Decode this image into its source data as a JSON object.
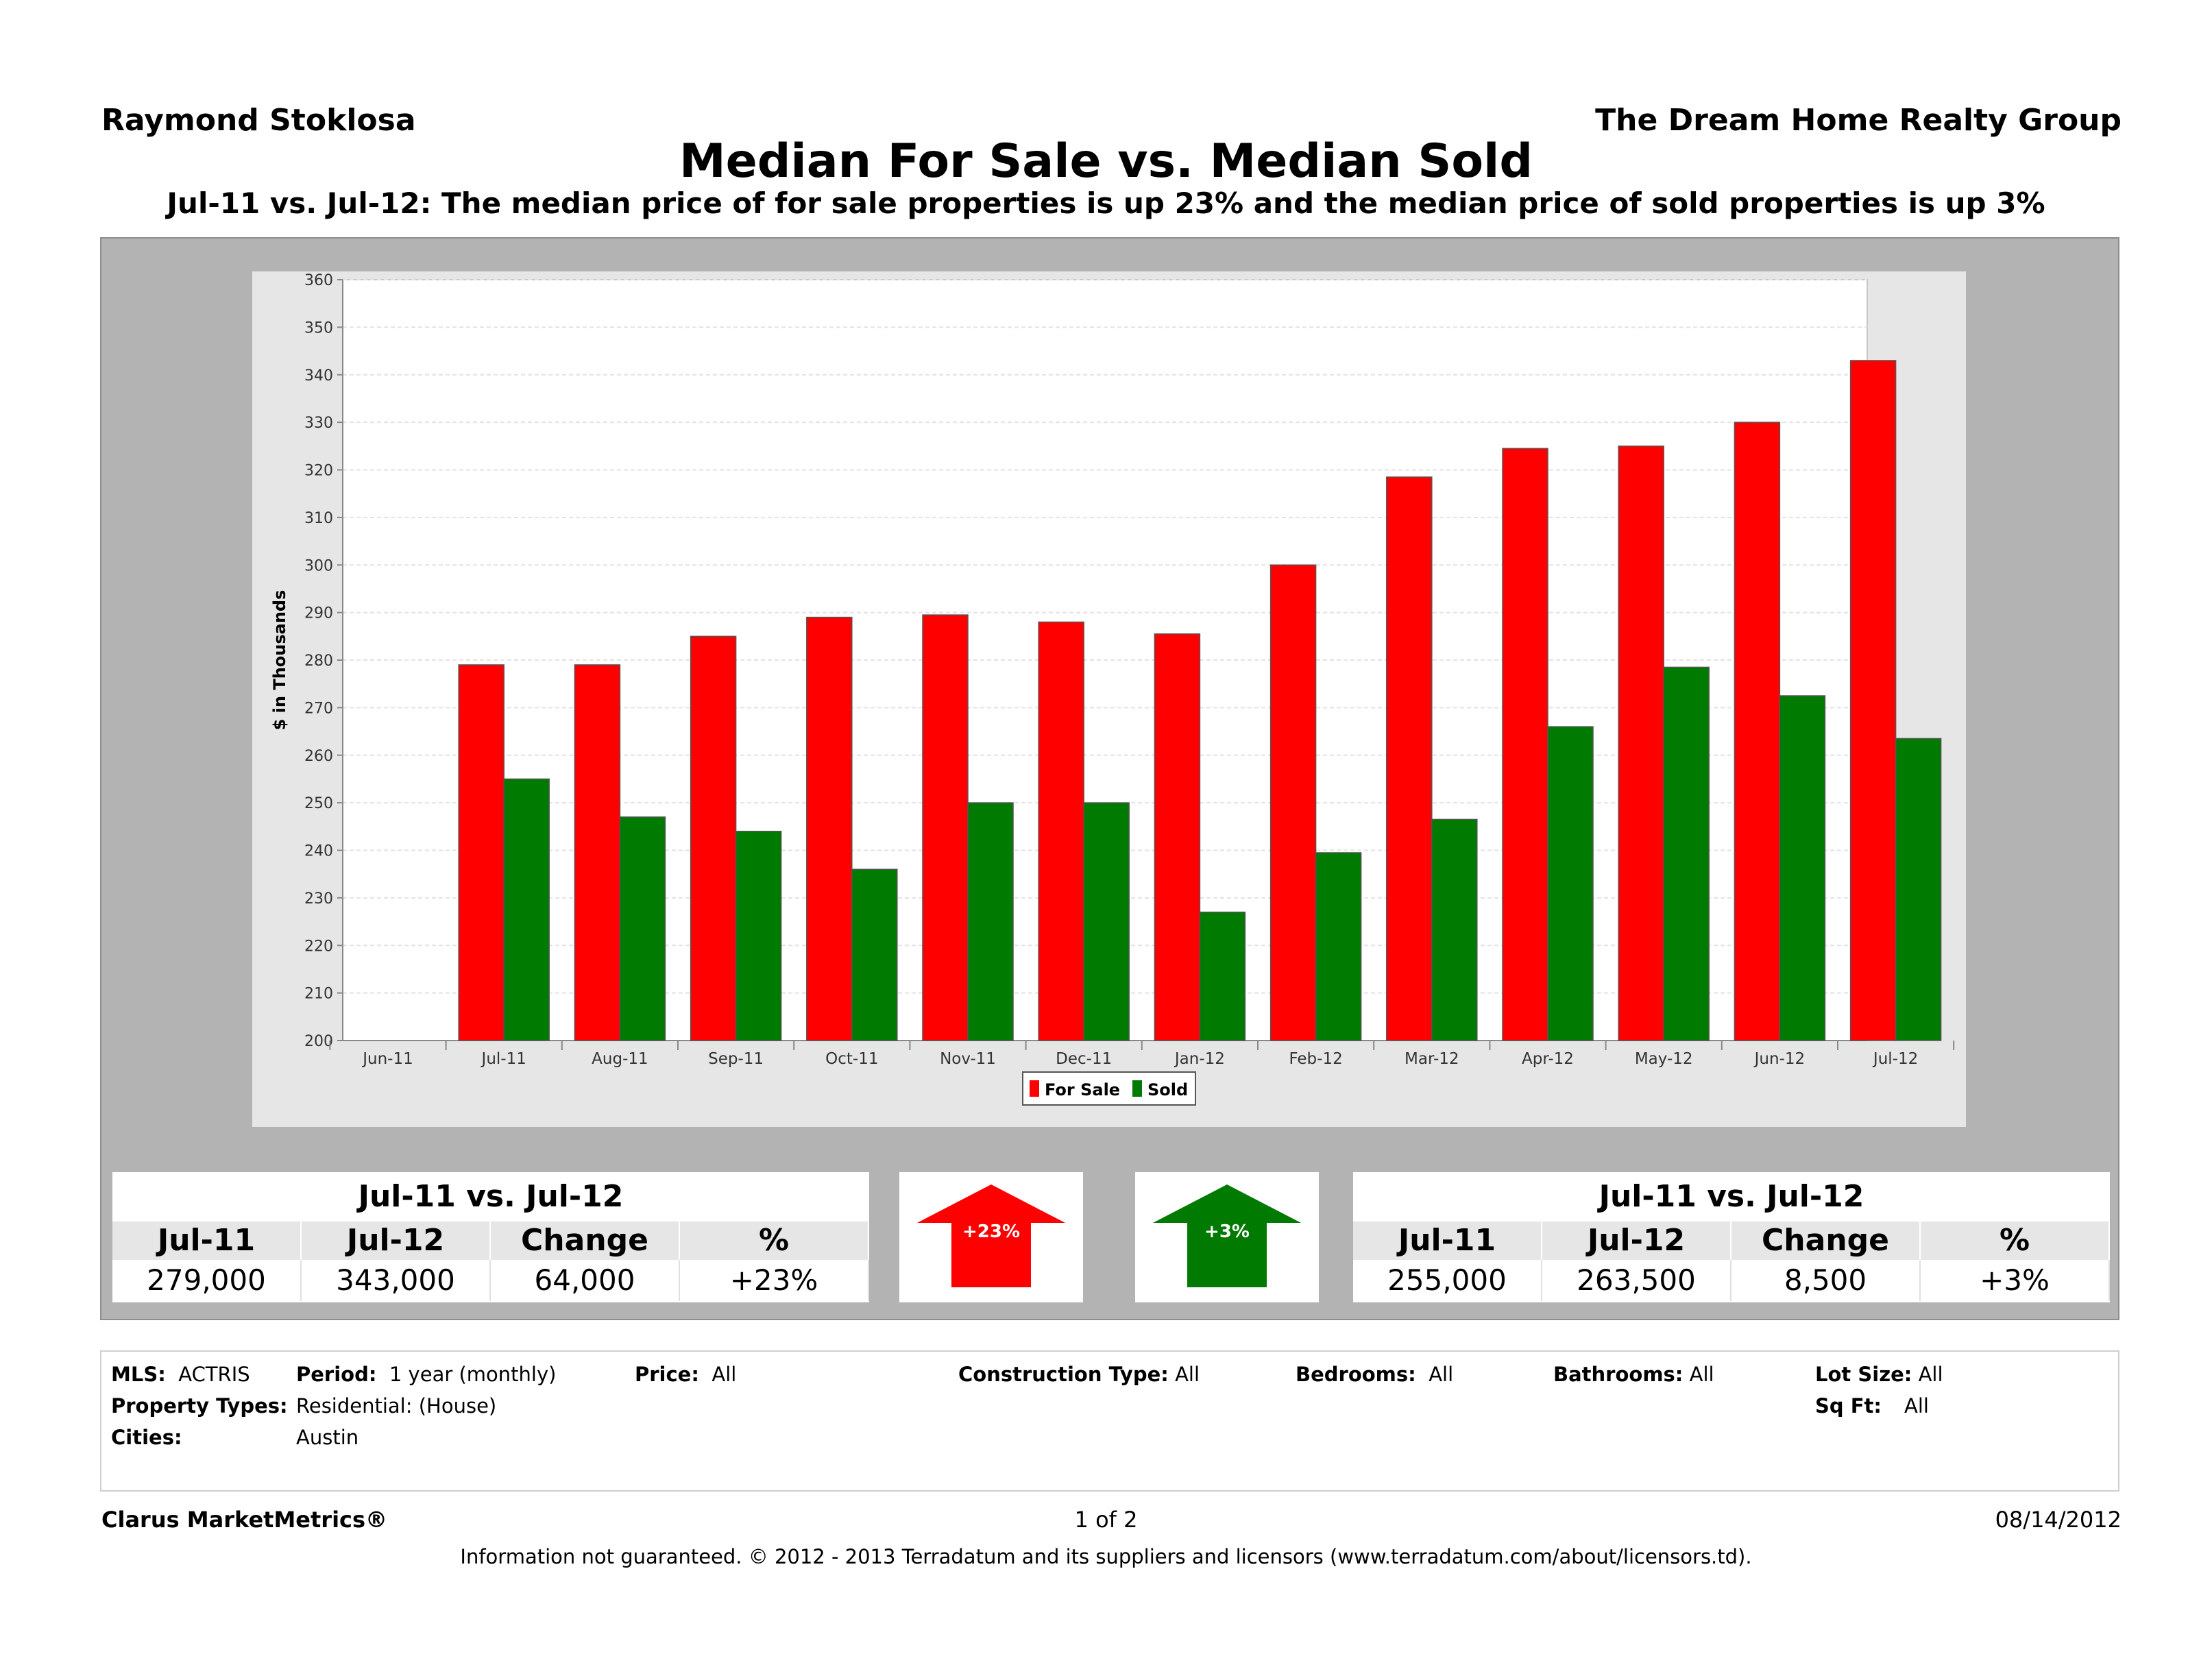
{
  "header": {
    "agent": "Raymond Stoklosa",
    "company": "The Dream Home Realty Group",
    "title": "Median For Sale vs. Median Sold",
    "subtitle": "Jul-11 vs. Jul-12:  The median price of for sale properties is up 23% and the median price of sold properties is up 3%"
  },
  "chart_data": {
    "type": "bar",
    "ylabel": "$ in Thousands",
    "ylim": [
      200,
      360
    ],
    "yticks": [
      "200",
      "210",
      "220",
      "230",
      "240",
      "250",
      "260",
      "270",
      "280",
      "290",
      "300",
      "310",
      "320",
      "330",
      "340",
      "350",
      "360"
    ],
    "categories": [
      "Jun-11",
      "Jul-11",
      "Aug-11",
      "Sep-11",
      "Oct-11",
      "Nov-11",
      "Dec-11",
      "Jan-12",
      "Feb-12",
      "Mar-12",
      "Apr-12",
      "May-12",
      "Jun-12",
      "Jul-12"
    ],
    "series": [
      {
        "name": "For Sale",
        "color": "#ff0000",
        "values": [
          null,
          279,
          279,
          285,
          289,
          289.5,
          288,
          285.5,
          300,
          318.5,
          324.5,
          325,
          330,
          343
        ]
      },
      {
        "name": "Sold",
        "color": "#007a00",
        "values": [
          null,
          255,
          247,
          244,
          236,
          250,
          250,
          227,
          239.5,
          246.5,
          266,
          278.5,
          272.5,
          263.5
        ]
      }
    ],
    "grid": true,
    "legend": "bottom-center"
  },
  "stats": {
    "for_sale": {
      "title": "Jul-11 vs. Jul-12",
      "headers": [
        "Jul-11",
        "Jul-12",
        "Change",
        "%"
      ],
      "values": [
        "279,000",
        "343,000",
        "64,000",
        "+23%"
      ],
      "arrow_label": "+23%",
      "arrow_color": "#ff0000"
    },
    "sold": {
      "title": "Jul-11 vs. Jul-12",
      "headers": [
        "Jul-11",
        "Jul-12",
        "Change",
        "%"
      ],
      "values": [
        "255,000",
        "263,500",
        "8,500",
        "+3%"
      ],
      "arrow_label": "+3%",
      "arrow_color": "#007a00"
    }
  },
  "criteria": {
    "mls_label": "MLS:",
    "mls": "ACTRIS",
    "period_label": "Period:",
    "period": "1 year (monthly)",
    "price_label": "Price:",
    "price": "All",
    "construction_label": "Construction Type:",
    "construction": "All",
    "bedrooms_label": "Bedrooms:",
    "bedrooms": "All",
    "bathrooms_label": "Bathrooms:",
    "bathrooms": "All",
    "lot_label": "Lot Size:",
    "lot": "All",
    "types_label": "Property Types:",
    "types": "Residential: (House)",
    "sqft_label": "Sq Ft:",
    "sqft": "All",
    "cities_label": "Cities:",
    "cities": "Austin"
  },
  "footer": {
    "brand": "Clarus MarketMetrics®",
    "page": "1 of 2",
    "date": "08/14/2012",
    "disclaimer": "Information not guaranteed.  © 2012 - 2013 Terradatum and its suppliers and licensors (www.terradatum.com/about/licensors.td)."
  }
}
